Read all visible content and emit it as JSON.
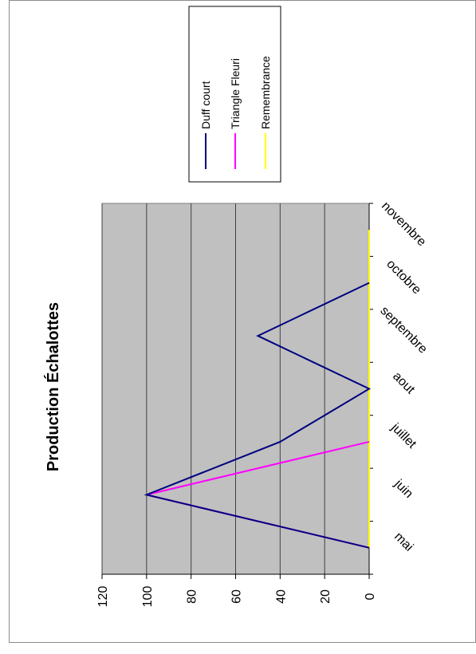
{
  "chart_data": {
    "type": "line",
    "title": "Production Échalottes",
    "categories": [
      "mai",
      "juin",
      "juillet",
      "aout",
      "septembre",
      "octobre",
      "novembre"
    ],
    "series": [
      {
        "name": "Duff court",
        "values": [
          0,
          100,
          40,
          0,
          50,
          0,
          null
        ],
        "color": "#000080"
      },
      {
        "name": "Triangle Fleuri",
        "values": [
          0,
          100,
          0,
          null,
          null,
          null,
          null
        ],
        "color": "#ff00ff"
      },
      {
        "name": "Remembrance",
        "values": [
          0,
          0,
          0,
          0,
          0,
          0,
          0
        ],
        "color": "#ffff00"
      }
    ],
    "ylim": [
      0,
      120
    ],
    "yticks": [
      "0",
      "20",
      "40",
      "60",
      "80",
      "100",
      "120"
    ],
    "grid": true,
    "legend": "top-right",
    "orientation": "rotated-90-clockwise"
  }
}
